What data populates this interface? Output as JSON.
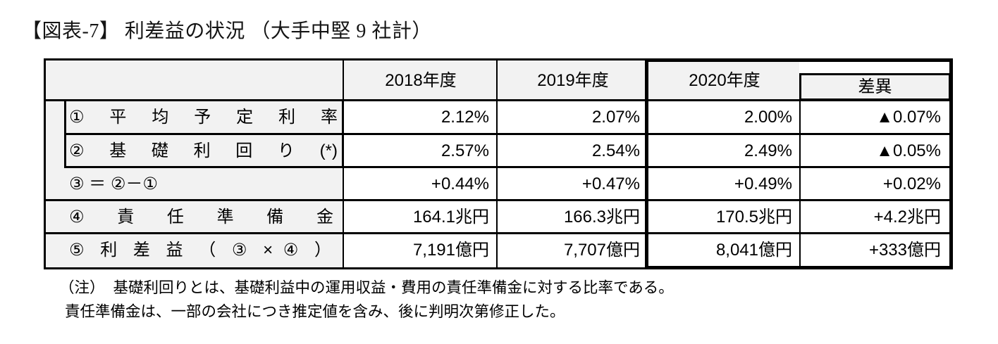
{
  "title": "【図表-7】 利差益の状況 （大手中堅 9 社計）",
  "table": {
    "headers": {
      "y2018": "2018年度",
      "y2019": "2019年度",
      "y2020": "2020年度",
      "diff": "差異"
    },
    "rows": [
      {
        "label": "① 平 均 予 定 利 率",
        "values": [
          "2.12%",
          "2.07%",
          "2.00%",
          "▲0.07%"
        ]
      },
      {
        "label": "② 基 礎 利 回 り (*)",
        "values": [
          "2.57%",
          "2.54%",
          "2.49%",
          "▲0.05%"
        ]
      },
      {
        "label": "③ ＝ ②－①",
        "values": [
          "+0.44%",
          "+0.47%",
          "+0.49%",
          "+0.02%"
        ]
      },
      {
        "label": "④ 責 任 準 備 金",
        "values": [
          "164.1兆円",
          "166.3兆円",
          "170.5兆円",
          "+4.2兆円"
        ]
      },
      {
        "label": "⑤ 利 差 益 （ ③ × ④ ）",
        "values": [
          "7,191億円",
          "7,707億円",
          "8,041億円",
          "+333億円"
        ]
      }
    ]
  },
  "notes": {
    "mark": "（注）",
    "line1": "基礎利回りとは、基礎利益中の運用収益・費用の責任準備金に対する比率である。",
    "line2": "責任準備金は、一部の会社につき推定値を含み、後に判明次第修正した。"
  },
  "colors": {
    "header_bg": "#f2f2f2",
    "border": "#000000",
    "page_bg": "#ffffff"
  }
}
